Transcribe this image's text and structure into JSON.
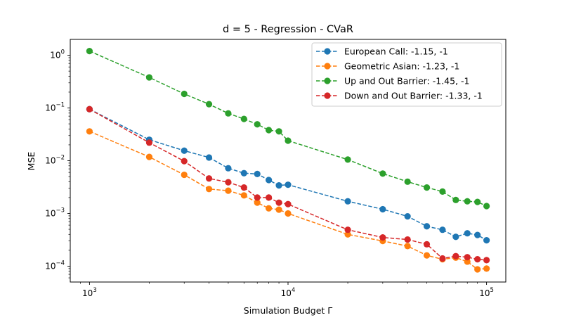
{
  "chart_data": {
    "type": "line",
    "title": "d = 5 - Regression - CVaR",
    "xlabel": "Simulation Budget Γ",
    "ylabel": "MSE",
    "xscale": "log",
    "yscale": "log",
    "xlim": [
      800,
      125000
    ],
    "ylim": [
      5e-05,
      2.0
    ],
    "grid": false,
    "legend_position": "top-right",
    "line_style": "dashed",
    "marker": "circle",
    "x_ticks": [
      {
        "value": 1000,
        "base": "10",
        "exp": "3"
      },
      {
        "value": 10000,
        "base": "10",
        "exp": "4"
      },
      {
        "value": 100000,
        "base": "10",
        "exp": "5"
      }
    ],
    "y_ticks": [
      {
        "value": 0.0001,
        "base": "10",
        "exp": "−4"
      },
      {
        "value": 0.001,
        "base": "10",
        "exp": "−3"
      },
      {
        "value": 0.01,
        "base": "10",
        "exp": "−2"
      },
      {
        "value": 0.1,
        "base": "10",
        "exp": "−1"
      },
      {
        "value": 1,
        "base": "10",
        "exp": "0"
      }
    ],
    "x": [
      1000,
      2000,
      3000,
      4000,
      5000,
      6000,
      7000,
      8000,
      9000,
      10000,
      20000,
      30000,
      40000,
      50000,
      60000,
      70000,
      80000,
      90000,
      100000
    ],
    "series": [
      {
        "name": "European Call: -1.15, -1",
        "color": "#1f77b4",
        "x": [
          1000,
          2000,
          3000,
          4000,
          5000,
          6000,
          7000,
          8000,
          9000,
          10000,
          20000,
          30000,
          40000,
          50000,
          60000,
          70000,
          80000,
          90000,
          100000
        ],
        "values": [
          0.095,
          0.025,
          0.0155,
          0.0115,
          0.0072,
          0.0058,
          0.0056,
          0.0043,
          0.0034,
          0.0035,
          0.0017,
          0.0012,
          0.00088,
          0.00057,
          0.00049,
          0.00036,
          0.00042,
          0.00039,
          0.00031
        ]
      },
      {
        "name": "Geometric Asian: -1.23, -1",
        "color": "#ff7f0e",
        "x": [
          1000,
          2000,
          3000,
          4000,
          5000,
          6000,
          7000,
          8000,
          9000,
          10000,
          20000,
          30000,
          40000,
          50000,
          60000,
          70000,
          80000,
          90000,
          100000
        ],
        "values": [
          0.036,
          0.0118,
          0.0054,
          0.0029,
          0.0027,
          0.0022,
          0.0016,
          0.00125,
          0.00118,
          0.001,
          0.0004,
          0.0003,
          0.00024,
          0.00016,
          0.000135,
          0.000145,
          0.000122,
          8.7e-05,
          9e-05
        ]
      },
      {
        "name": "Up and Out Barrier: -1.45, -1",
        "color": "#2ca02c",
        "x": [
          1000,
          2000,
          3000,
          4000,
          5000,
          6000,
          7000,
          8000,
          9000,
          10000,
          20000,
          30000,
          40000,
          50000,
          60000,
          70000,
          80000,
          90000,
          100000
        ],
        "values": [
          1.2,
          0.38,
          0.185,
          0.118,
          0.079,
          0.062,
          0.049,
          0.038,
          0.036,
          0.024,
          0.0105,
          0.0057,
          0.004,
          0.0031,
          0.0026,
          0.0018,
          0.0017,
          0.00165,
          0.00138
        ]
      },
      {
        "name": "Down and Out Barrier: -1.33, -1",
        "color": "#d62728",
        "x": [
          1000,
          2000,
          3000,
          4000,
          5000,
          6000,
          7000,
          8000,
          9000,
          10000,
          20000,
          30000,
          40000,
          50000,
          60000,
          70000,
          80000,
          90000,
          100000
        ],
        "values": [
          0.095,
          0.022,
          0.0098,
          0.0046,
          0.0039,
          0.0031,
          0.002,
          0.002,
          0.0016,
          0.0015,
          0.00049,
          0.00035,
          0.00032,
          0.00026,
          0.00014,
          0.000155,
          0.000148,
          0.000135,
          0.00013
        ]
      }
    ]
  }
}
